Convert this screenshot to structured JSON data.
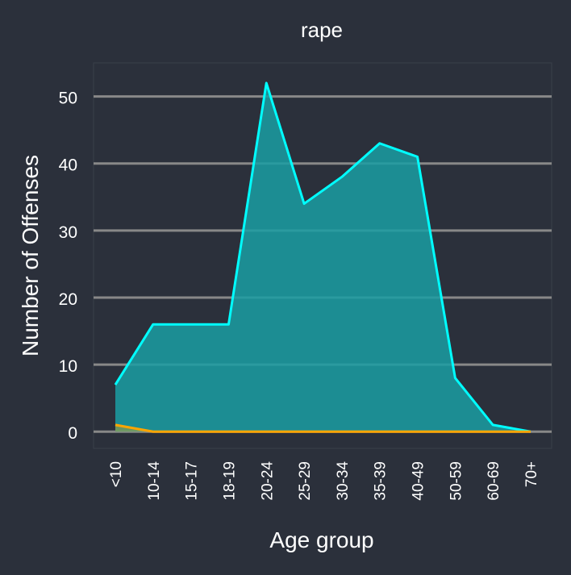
{
  "chart_data": {
    "type": "area",
    "title": "rape",
    "xlabel": "Age group",
    "ylabel": "Number of Offenses",
    "categories": [
      "<10",
      "10-14",
      "15-17",
      "18-19",
      "20-24",
      "25-29",
      "30-34",
      "35-39",
      "40-49",
      "50-59",
      "60-69",
      "70+"
    ],
    "ylim": [
      -2.5,
      55
    ],
    "yticks": [
      0,
      10,
      20,
      30,
      40,
      50
    ],
    "grid": "horizontal",
    "series": [
      {
        "values": [
          7,
          16,
          16,
          16,
          52,
          34,
          38,
          43,
          41,
          8,
          1,
          0
        ],
        "color": "#00ffff",
        "fill": "#1a9ea3"
      },
      {
        "values": [
          1,
          0,
          0,
          0,
          0,
          0,
          0,
          0,
          0,
          0,
          0,
          0
        ],
        "color": "#ffa500",
        "fill": "#ffa500"
      }
    ],
    "colors": {
      "background": "#2b303b",
      "panel_border": "#3a3f4a",
      "grid": "#888888",
      "text": "#ffffff"
    }
  }
}
